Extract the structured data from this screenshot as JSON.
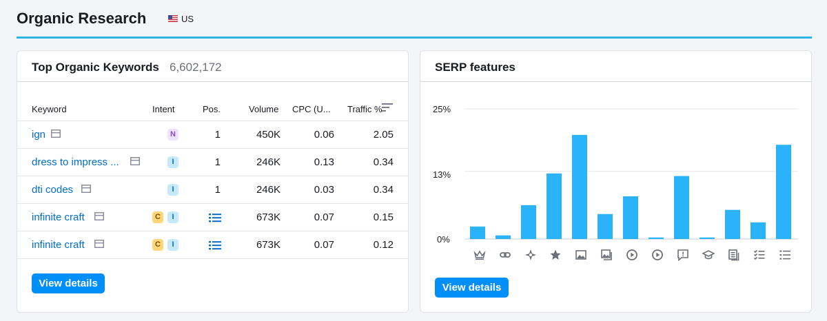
{
  "header": {
    "title": "Organic Research",
    "country": "US"
  },
  "keywords_card": {
    "title": "Top Organic Keywords",
    "count": "6,602,172",
    "columns": {
      "keyword": "Keyword",
      "intent": "Intent",
      "pos": "Pos.",
      "volume": "Volume",
      "cpc": "CPC (U...",
      "traffic": "Traffic %"
    },
    "rows": [
      {
        "keyword": "ign",
        "intents": [
          "N"
        ],
        "pos": "1",
        "volume": "450K",
        "cpc": "0.06",
        "traffic": "2.05"
      },
      {
        "keyword": "dress to impress ...",
        "intents": [
          "I"
        ],
        "pos": "1",
        "volume": "246K",
        "cpc": "0.13",
        "traffic": "0.34"
      },
      {
        "keyword": "dti codes",
        "intents": [
          "I"
        ],
        "pos": "1",
        "volume": "246K",
        "cpc": "0.03",
        "traffic": "0.34"
      },
      {
        "keyword": "infinite craft",
        "intents": [
          "C",
          "I"
        ],
        "pos": "",
        "volume": "673K",
        "cpc": "0.07",
        "traffic": "0.15"
      },
      {
        "keyword": "infinite craft",
        "intents": [
          "C",
          "I"
        ],
        "pos": "",
        "volume": "673K",
        "cpc": "0.07",
        "traffic": "0.12"
      }
    ],
    "button_label": "View details"
  },
  "serp_card": {
    "title": "SERP features",
    "button_label": "View details",
    "icons": [
      "crown-icon",
      "link-icon",
      "site-links-icon",
      "star-icon",
      "image-icon",
      "image-pack-icon",
      "video-icon",
      "featured-video-icon",
      "people-ask-icon",
      "graduation-cap-icon",
      "news-icon",
      "checklist-icon",
      "list-icon"
    ]
  },
  "chart_data": {
    "type": "bar",
    "ylim": [
      0,
      25
    ],
    "yticks": [
      "25%",
      "13%",
      "0%"
    ],
    "ytick_values": [
      25,
      13,
      0
    ],
    "values": [
      2.4,
      0.7,
      6.5,
      12.6,
      20.0,
      4.8,
      8.2,
      0.3,
      12.1,
      0.3,
      5.6,
      3.2,
      18.1
    ],
    "bar_color": "#2bb3f9",
    "grid": true
  },
  "colors": {
    "accent": "#008ff8",
    "link": "#006dca",
    "underline": "#2bb4ec"
  }
}
